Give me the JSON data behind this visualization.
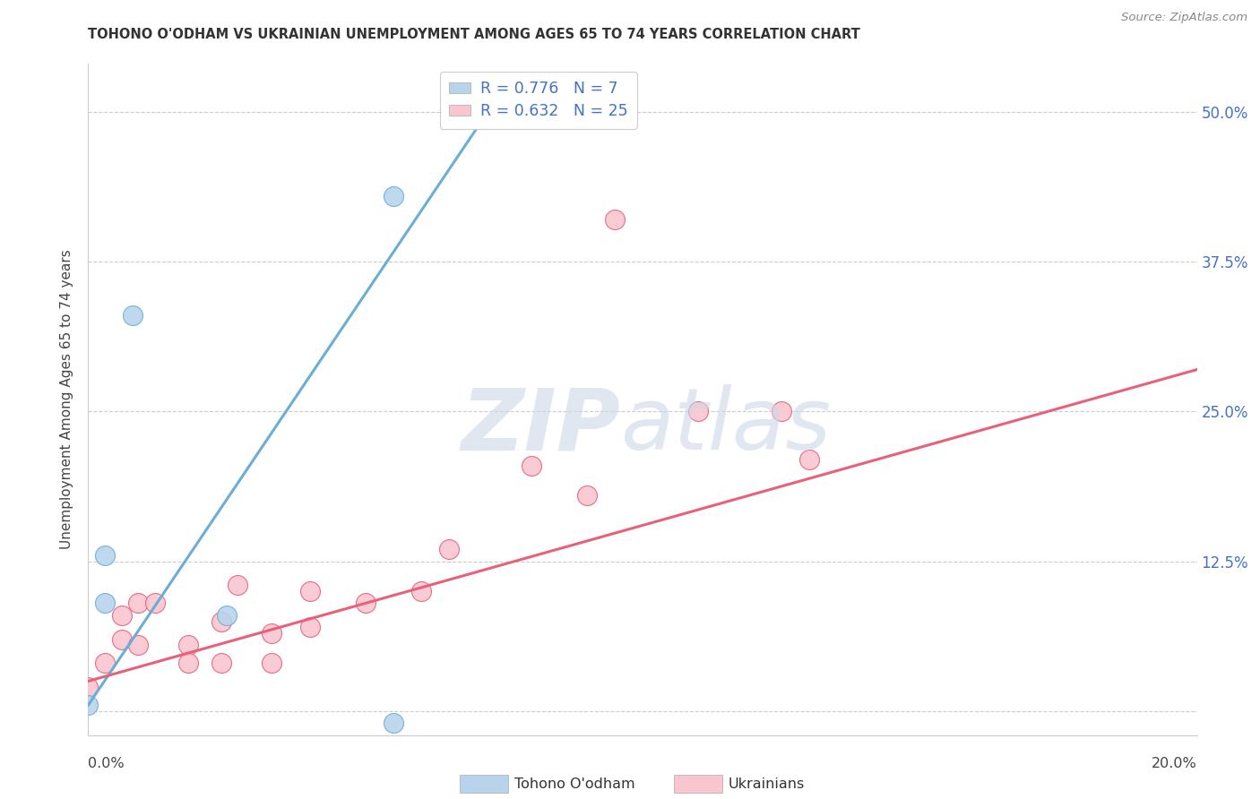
{
  "title": "TOHONO O'ODHAM VS UKRAINIAN UNEMPLOYMENT AMONG AGES 65 TO 74 YEARS CORRELATION CHART",
  "source": "Source: ZipAtlas.com",
  "ylabel": "Unemployment Among Ages 65 to 74 years",
  "xmin": 0.0,
  "xmax": 0.2,
  "ymin": 0.0,
  "ymax": 0.54,
  "tohono_color": "#b8d4ed",
  "tohono_edge_color": "#6aaed6",
  "ukrainian_color": "#f9c6d0",
  "ukrainian_edge_color": "#e8607a",
  "tohono_R": "0.776",
  "tohono_N": "7",
  "ukrainian_R": "0.632",
  "ukrainian_N": "25",
  "tohono_points_x": [
    0.0,
    0.003,
    0.003,
    0.008,
    0.025,
    0.055,
    0.055
  ],
  "tohono_points_y": [
    0.005,
    0.13,
    0.09,
    0.33,
    0.08,
    0.43,
    -0.01
  ],
  "ukrainian_points_x": [
    0.0,
    0.003,
    0.006,
    0.006,
    0.009,
    0.009,
    0.012,
    0.018,
    0.018,
    0.024,
    0.024,
    0.027,
    0.033,
    0.033,
    0.04,
    0.04,
    0.05,
    0.06,
    0.065,
    0.08,
    0.09,
    0.095,
    0.11,
    0.125,
    0.13
  ],
  "ukrainian_points_y": [
    0.02,
    0.04,
    0.08,
    0.06,
    0.09,
    0.055,
    0.09,
    0.055,
    0.04,
    0.075,
    0.04,
    0.105,
    0.065,
    0.04,
    0.1,
    0.07,
    0.09,
    0.1,
    0.135,
    0.205,
    0.18,
    0.41,
    0.25,
    0.25,
    0.21
  ],
  "tohono_trendline_x": [
    0.0,
    0.075
  ],
  "tohono_trendline_y": [
    0.005,
    0.52
  ],
  "ukrainian_trendline_x": [
    0.0,
    0.2
  ],
  "ukrainian_trendline_y": [
    0.025,
    0.285
  ],
  "background_color": "#ffffff",
  "grid_color": "#cccccc",
  "legend_color": "#4472c4",
  "ytick_vals": [
    0.0,
    0.125,
    0.25,
    0.375,
    0.5
  ],
  "ytick_labels": [
    "",
    "12.5%",
    "25.0%",
    "37.5%",
    "50.0%"
  ]
}
